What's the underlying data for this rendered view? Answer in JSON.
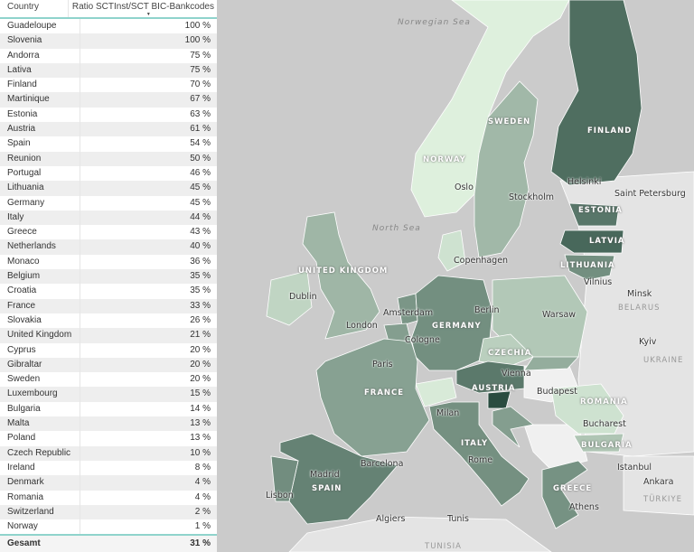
{
  "table": {
    "headers": {
      "country": "Country",
      "ratio": "Ratio SCTInst/SCT BIC-Bankcodes",
      "sort_icon": "sort-descending-icon"
    },
    "rows": [
      {
        "country": "Guadeloupe",
        "ratio": "100 %"
      },
      {
        "country": "Slovenia",
        "ratio": "100 %"
      },
      {
        "country": "Andorra",
        "ratio": "75 %"
      },
      {
        "country": "Lativa",
        "ratio": "75 %"
      },
      {
        "country": "Finland",
        "ratio": "70 %"
      },
      {
        "country": "Martinique",
        "ratio": "67 %"
      },
      {
        "country": "Estonia",
        "ratio": "63 %"
      },
      {
        "country": "Austria",
        "ratio": "61 %"
      },
      {
        "country": "Spain",
        "ratio": "54 %"
      },
      {
        "country": "Reunion",
        "ratio": "50 %"
      },
      {
        "country": "Portugal",
        "ratio": "46 %"
      },
      {
        "country": "Lithuania",
        "ratio": "45 %"
      },
      {
        "country": "Germany",
        "ratio": "45 %"
      },
      {
        "country": "Italy",
        "ratio": "44 %"
      },
      {
        "country": "Greece",
        "ratio": "43 %"
      },
      {
        "country": "Netherlands",
        "ratio": "40 %"
      },
      {
        "country": "Monaco",
        "ratio": "36 %"
      },
      {
        "country": "Belgium",
        "ratio": "35 %"
      },
      {
        "country": "Croatia",
        "ratio": "35 %"
      },
      {
        "country": "France",
        "ratio": "33 %"
      },
      {
        "country": "Slovakia",
        "ratio": "26 %"
      },
      {
        "country": "United Kingdom",
        "ratio": "21 %"
      },
      {
        "country": "Cyprus",
        "ratio": "20 %"
      },
      {
        "country": "Gibraltar",
        "ratio": "20 %"
      },
      {
        "country": "Sweden",
        "ratio": "20 %"
      },
      {
        "country": "Luxembourg",
        "ratio": "15 %"
      },
      {
        "country": "Bulgaria",
        "ratio": "14 %"
      },
      {
        "country": "Malta",
        "ratio": "13 %"
      },
      {
        "country": "Poland",
        "ratio": "13 %"
      },
      {
        "country": "Czech Republic",
        "ratio": "10 %"
      },
      {
        "country": "Ireland",
        "ratio": "8 %"
      },
      {
        "country": "Denmark",
        "ratio": "4 %"
      },
      {
        "country": "Romania",
        "ratio": "4 %"
      },
      {
        "country": "Switzerland",
        "ratio": "2 %"
      },
      {
        "country": "Norway",
        "ratio": "1 %"
      }
    ],
    "total": {
      "label": "Gesamt",
      "ratio": "31 %"
    }
  },
  "map": {
    "colors": {
      "sea": "#cbcbcb",
      "no_data_land": "#f0f0f0",
      "other_land": "#e4e4e4",
      "scale_low": "#eafbe8",
      "scale_high": "#2a4c40"
    },
    "seas": [
      "Norwegian Sea",
      "North Sea"
    ],
    "country_labels": [
      "NORWAY",
      "SWEDEN",
      "FINLAND",
      "ESTONIA",
      "LATVIA",
      "LITHUANIA",
      "UNITED KINGDOM",
      "GERMANY",
      "CZECHIA",
      "AUSTRIA",
      "FRANCE",
      "ROMANIA",
      "BULGARIA",
      "ITALY",
      "SPAIN",
      "GREECE"
    ],
    "other_labels": [
      "BELARUS",
      "UKRAINE",
      "TÜRKIYE",
      "TUNISIA"
    ],
    "cities": [
      "Oslo",
      "Stockholm",
      "Helsinki",
      "Saint Petersburg",
      "Vilnius",
      "Minsk",
      "Copenhagen",
      "Dublin",
      "London",
      "Amsterdam",
      "Berlin",
      "Cologne",
      "Warsaw",
      "Kyiv",
      "Paris",
      "Vienna",
      "Budapest",
      "Milan",
      "Bucharest",
      "Rome",
      "Barcelona",
      "Madrid",
      "Lisbon",
      "Istanbul",
      "Ankara",
      "Algiers",
      "Tunis",
      "Athens"
    ]
  }
}
